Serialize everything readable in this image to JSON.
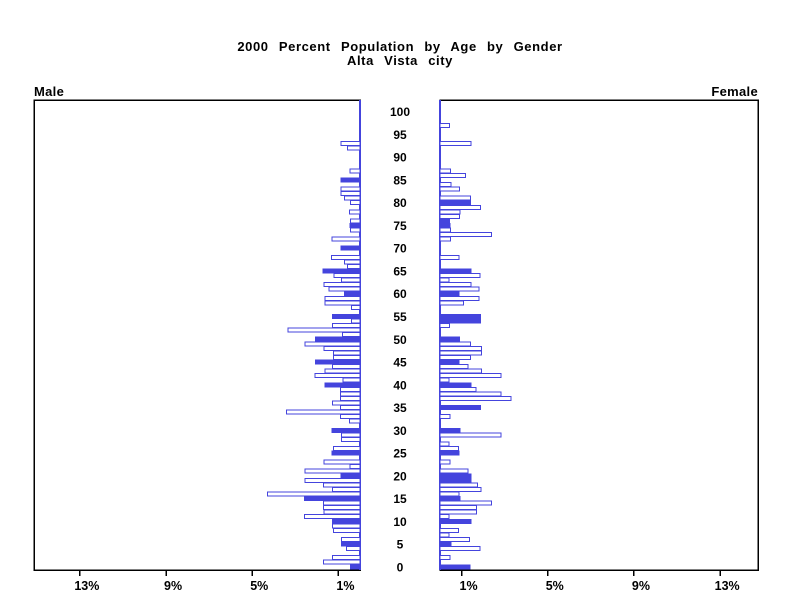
{
  "chart_data": {
    "type": "bar",
    "subtype": "population-pyramid",
    "title": "2000 Percent Population by Age by Gender",
    "subtitle": "Alta Vista city",
    "left_panel_label": "Male",
    "right_panel_label": "Female",
    "axes": {
      "age_tick_labels": [
        "0",
        "5",
        "10",
        "15",
        "20",
        "25",
        "30",
        "35",
        "40",
        "45",
        "50",
        "55",
        "60",
        "65",
        "70",
        "75",
        "80",
        "85",
        "90",
        "95",
        "100"
      ],
      "age_tick_values": [
        0,
        5,
        10,
        15,
        20,
        25,
        30,
        35,
        40,
        45,
        50,
        55,
        60,
        65,
        70,
        75,
        80,
        85,
        90,
        95,
        100
      ],
      "male_percent_tick_labels": [
        "13%",
        "9%",
        "5%",
        "1%"
      ],
      "male_percent_tick_values": [
        13,
        9,
        5,
        1
      ],
      "female_percent_tick_labels": [
        "1%",
        "5%",
        "9%",
        "13%"
      ],
      "female_percent_tick_values": [
        1,
        5,
        9,
        13
      ],
      "percent_axis_max": 15,
      "grid": "off",
      "unit": "percent of total population, single year of age"
    },
    "colors": {
      "bar_blue": "#4444dd",
      "outline_bar_fill": "#ffffff",
      "frame_black": "#000000",
      "background": "#ffffff"
    },
    "male": {
      "values": [
        0.45,
        1.7,
        1.28,
        0,
        0.62,
        0.85,
        0.85,
        0,
        1.23,
        1.28,
        1.28,
        2.57,
        1.67,
        1.7,
        1.7,
        2.57,
        4.29,
        1.28,
        1.7,
        2.56,
        0.89,
        2.56,
        0.46,
        1.68,
        0,
        1.3,
        1.23,
        0,
        0.85,
        0.85,
        1.3,
        0,
        0.48,
        0.91,
        3.41,
        0.91,
        1.28,
        0.91,
        0.91,
        0.91,
        1.62,
        0.8,
        2.08,
        1.62,
        1.28,
        2.07,
        1.23,
        1.23,
        1.68,
        2.56,
        2.07,
        0.82,
        3.35,
        1.28,
        0.39,
        1.28,
        0,
        0.39,
        1.63,
        1.63,
        0.72,
        1.45,
        1.68,
        0.85,
        1.2,
        1.71,
        0.57,
        0.71,
        1.33,
        0,
        0.89,
        0,
        1.3,
        0,
        0.43,
        0.46,
        0.43,
        0,
        0.48,
        0,
        0.43,
        0.73,
        0.88,
        0.88,
        0,
        0.89,
        0,
        0.46,
        0,
        0,
        0,
        0,
        0.59,
        0.89,
        0,
        0,
        0,
        0,
        0,
        0,
        0
      ],
      "filled_ages": [
        0,
        5,
        10,
        15,
        20,
        25,
        30,
        40,
        45,
        50,
        55,
        60,
        65,
        70,
        75,
        85
      ]
    },
    "female": {
      "values": [
        1.4,
        0,
        0.46,
        0,
        1.85,
        0.51,
        1.38,
        0.42,
        0.85,
        0,
        1.43,
        0.42,
        1.69,
        1.69,
        2.39,
        0.93,
        0.88,
        1.9,
        1.74,
        1.43,
        1.43,
        1.3,
        0,
        0.46,
        0,
        0.89,
        0.85,
        0.42,
        0,
        2.82,
        0.93,
        0,
        0,
        0.46,
        0,
        1.89,
        0,
        3.29,
        2.82,
        1.67,
        1.43,
        0.42,
        2.84,
        1.93,
        1.3,
        0.89,
        1.42,
        1.93,
        1.93,
        1.42,
        0.9,
        0,
        0,
        0.43,
        1.89,
        1.89,
        0,
        0,
        1.09,
        1.8,
        0.89,
        1.8,
        1.44,
        0.42,
        1.85,
        1.44,
        0,
        0,
        0.88,
        0,
        0,
        0,
        0.48,
        2.4,
        0.48,
        0.46,
        0.43,
        0.91,
        0.93,
        1.88,
        1.42,
        1.42,
        0,
        0.91,
        0.51,
        0,
        1.19,
        0.48,
        0,
        0,
        0,
        0,
        0,
        1.45,
        0,
        0,
        0,
        0.45,
        0,
        0,
        0
      ],
      "filled_ages": [
        0,
        5,
        10,
        15,
        19,
        20,
        25,
        30,
        35,
        40,
        45,
        50,
        54,
        55,
        60,
        65,
        75,
        76,
        80
      ]
    }
  }
}
